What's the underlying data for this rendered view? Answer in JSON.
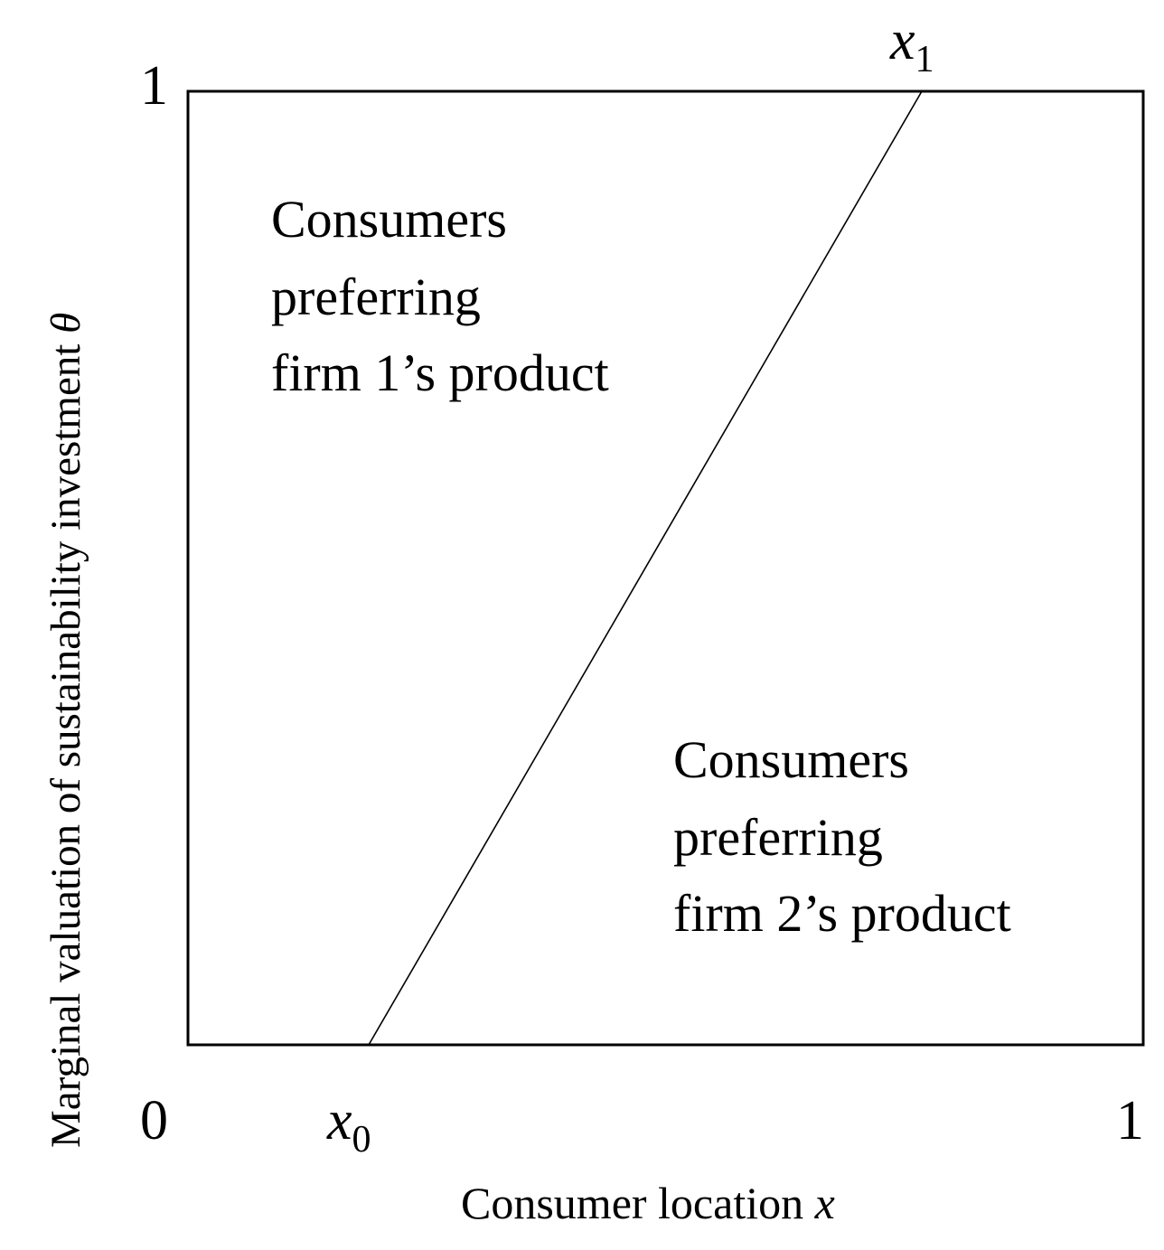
{
  "diagram": {
    "y_axis_label": "Marginal valuation of sustainability investment",
    "y_axis_symbol": "θ",
    "x_axis_label": "Consumer location",
    "x_axis_symbol": "x",
    "y_top_tick": "1",
    "origin_tick": "0",
    "x_right_tick": "1",
    "x0_label": {
      "base": "x",
      "sub": "0"
    },
    "x1_label": {
      "base": "x",
      "sub": "1"
    },
    "region_firm1": [
      "Consumers",
      "preferring",
      "firm 1’s product"
    ],
    "region_firm2": [
      "Consumers",
      "preferring",
      "firm 2’s product"
    ],
    "colors": {
      "line": "#000000",
      "background": "#ffffff"
    }
  }
}
